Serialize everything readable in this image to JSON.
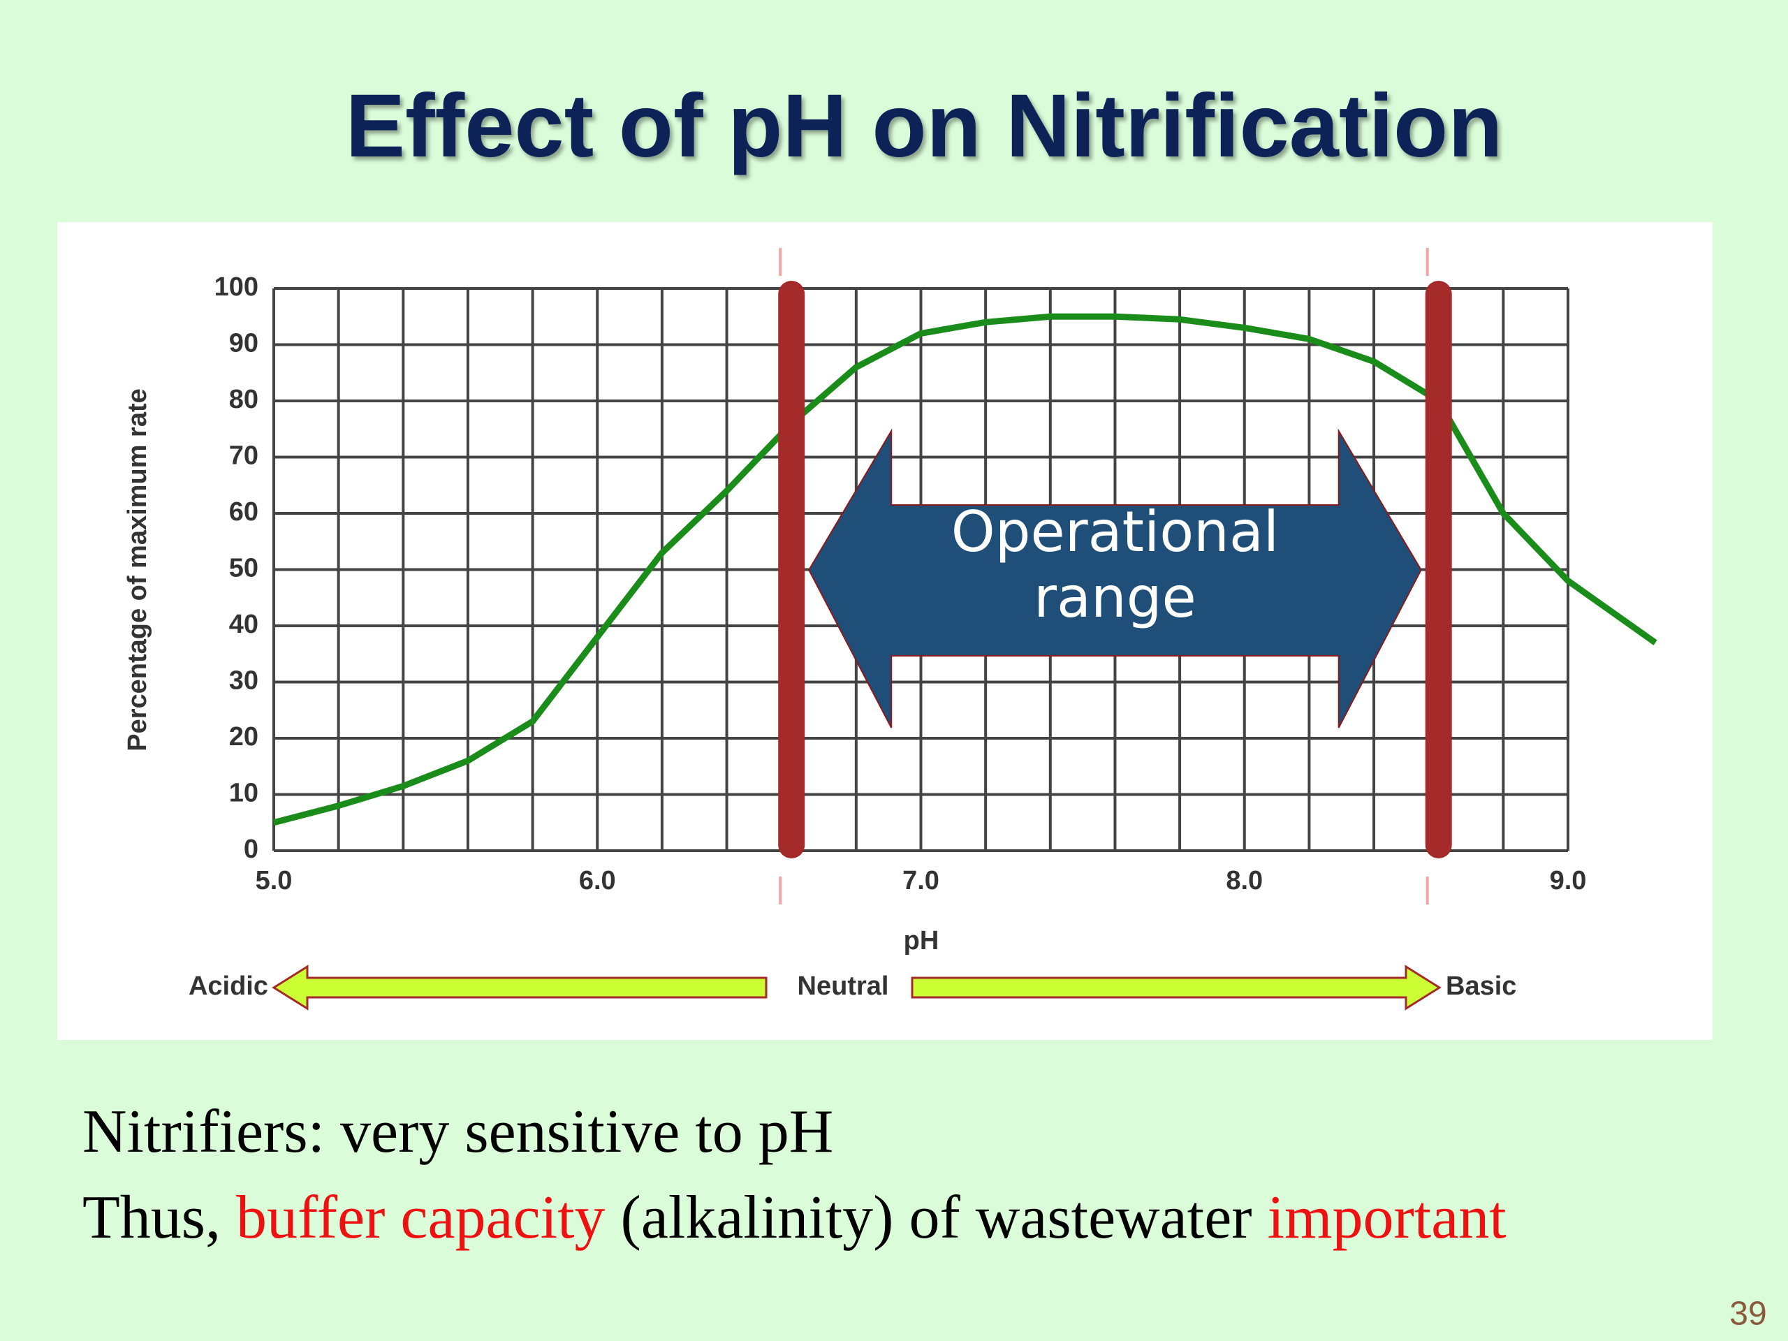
{
  "title": "Effect of pH on Nitrification",
  "chart_data": {
    "type": "line",
    "x": [
      5.0,
      5.2,
      5.4,
      5.6,
      5.8,
      6.0,
      6.2,
      6.4,
      6.6,
      6.8,
      7.0,
      7.2,
      7.4,
      7.6,
      7.8,
      8.0,
      8.2,
      8.4,
      8.6,
      8.8,
      9.0,
      9.27
    ],
    "values": [
      5,
      8,
      11.5,
      16,
      23,
      38,
      53,
      64,
      76,
      86,
      92,
      94,
      95,
      95,
      94.5,
      93,
      91,
      87,
      80,
      60,
      48,
      37
    ],
    "color": "#1a8c1a",
    "xlim": [
      5,
      9
    ],
    "ylim": [
      0,
      100
    ],
    "xticks": [
      {
        "value": 5,
        "label": "5.0"
      },
      {
        "value": 6,
        "label": "6.0"
      },
      {
        "value": 7,
        "label": "7.0"
      },
      {
        "value": 8,
        "label": "8.0"
      },
      {
        "value": 9,
        "label": "9.0"
      }
    ],
    "yticks": [
      0,
      10,
      20,
      30,
      40,
      50,
      60,
      70,
      80,
      90,
      100
    ],
    "xlabel": "pH",
    "ylabel": "Percentage of maximum rate",
    "grid": true,
    "operational_range": {
      "label": "Operational range",
      "bounds": [
        6.6,
        8.6
      ],
      "color": "#a52a2a"
    },
    "ph_scale": [
      "Acidic",
      "Neutral",
      "Basic"
    ]
  },
  "body": {
    "lines": [
      [
        {
          "text": "Nitrifiers: very sensitive to pH",
          "highlight": false
        }
      ],
      [
        {
          "text": "Thus, ",
          "highlight": false
        },
        {
          "text": "buffer capacity",
          "highlight": true
        },
        {
          "text": " (alkalinity) of wastewater ",
          "highlight": false
        },
        {
          "text": "important",
          "highlight": true
        }
      ]
    ]
  },
  "page_number": "39"
}
